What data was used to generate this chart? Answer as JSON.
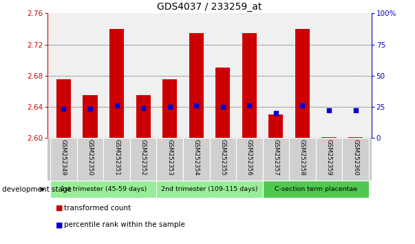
{
  "title": "GDS4037 / 233259_at",
  "samples": [
    "GSM252349",
    "GSM252350",
    "GSM252351",
    "GSM252352",
    "GSM252353",
    "GSM252354",
    "GSM252355",
    "GSM252356",
    "GSM252357",
    "GSM252358",
    "GSM252359",
    "GSM252360"
  ],
  "red_values": [
    2.675,
    2.655,
    2.74,
    2.655,
    2.675,
    2.735,
    2.69,
    2.735,
    2.63,
    2.74,
    2.601,
    2.601
  ],
  "blue_values": [
    23,
    23,
    26,
    24,
    25,
    26,
    25,
    26,
    20,
    26,
    22,
    22
  ],
  "baseline": 2.6,
  "ylim_left": [
    2.6,
    2.76
  ],
  "ylim_right": [
    0,
    100
  ],
  "yticks_left": [
    2.6,
    2.64,
    2.68,
    2.72,
    2.76
  ],
  "yticks_right": [
    0,
    25,
    50,
    75,
    100
  ],
  "ytick_labels_right": [
    "0",
    "25",
    "50",
    "75",
    "100%"
  ],
  "groups": [
    {
      "label": "1st trimester (45-59 days)",
      "start": 0,
      "end": 4,
      "color": "#98EE98"
    },
    {
      "label": "2nd trimester (109-115 days)",
      "start": 4,
      "end": 8,
      "color": "#98EE98"
    },
    {
      "label": "C-section term placentae",
      "start": 8,
      "end": 12,
      "color": "#50C850"
    }
  ],
  "bar_color": "#CC0000",
  "blue_color": "#0000CC",
  "bar_width": 0.55,
  "plot_bg_color": "#F0F0F0",
  "left_tick_color": "#CC0000",
  "right_tick_color": "#0000CC",
  "legend_red_label": "transformed count",
  "legend_blue_label": "percentile rank within the sample",
  "dev_stage_label": "development stage",
  "grid_ticks": [
    2.64,
    2.68,
    2.72
  ]
}
